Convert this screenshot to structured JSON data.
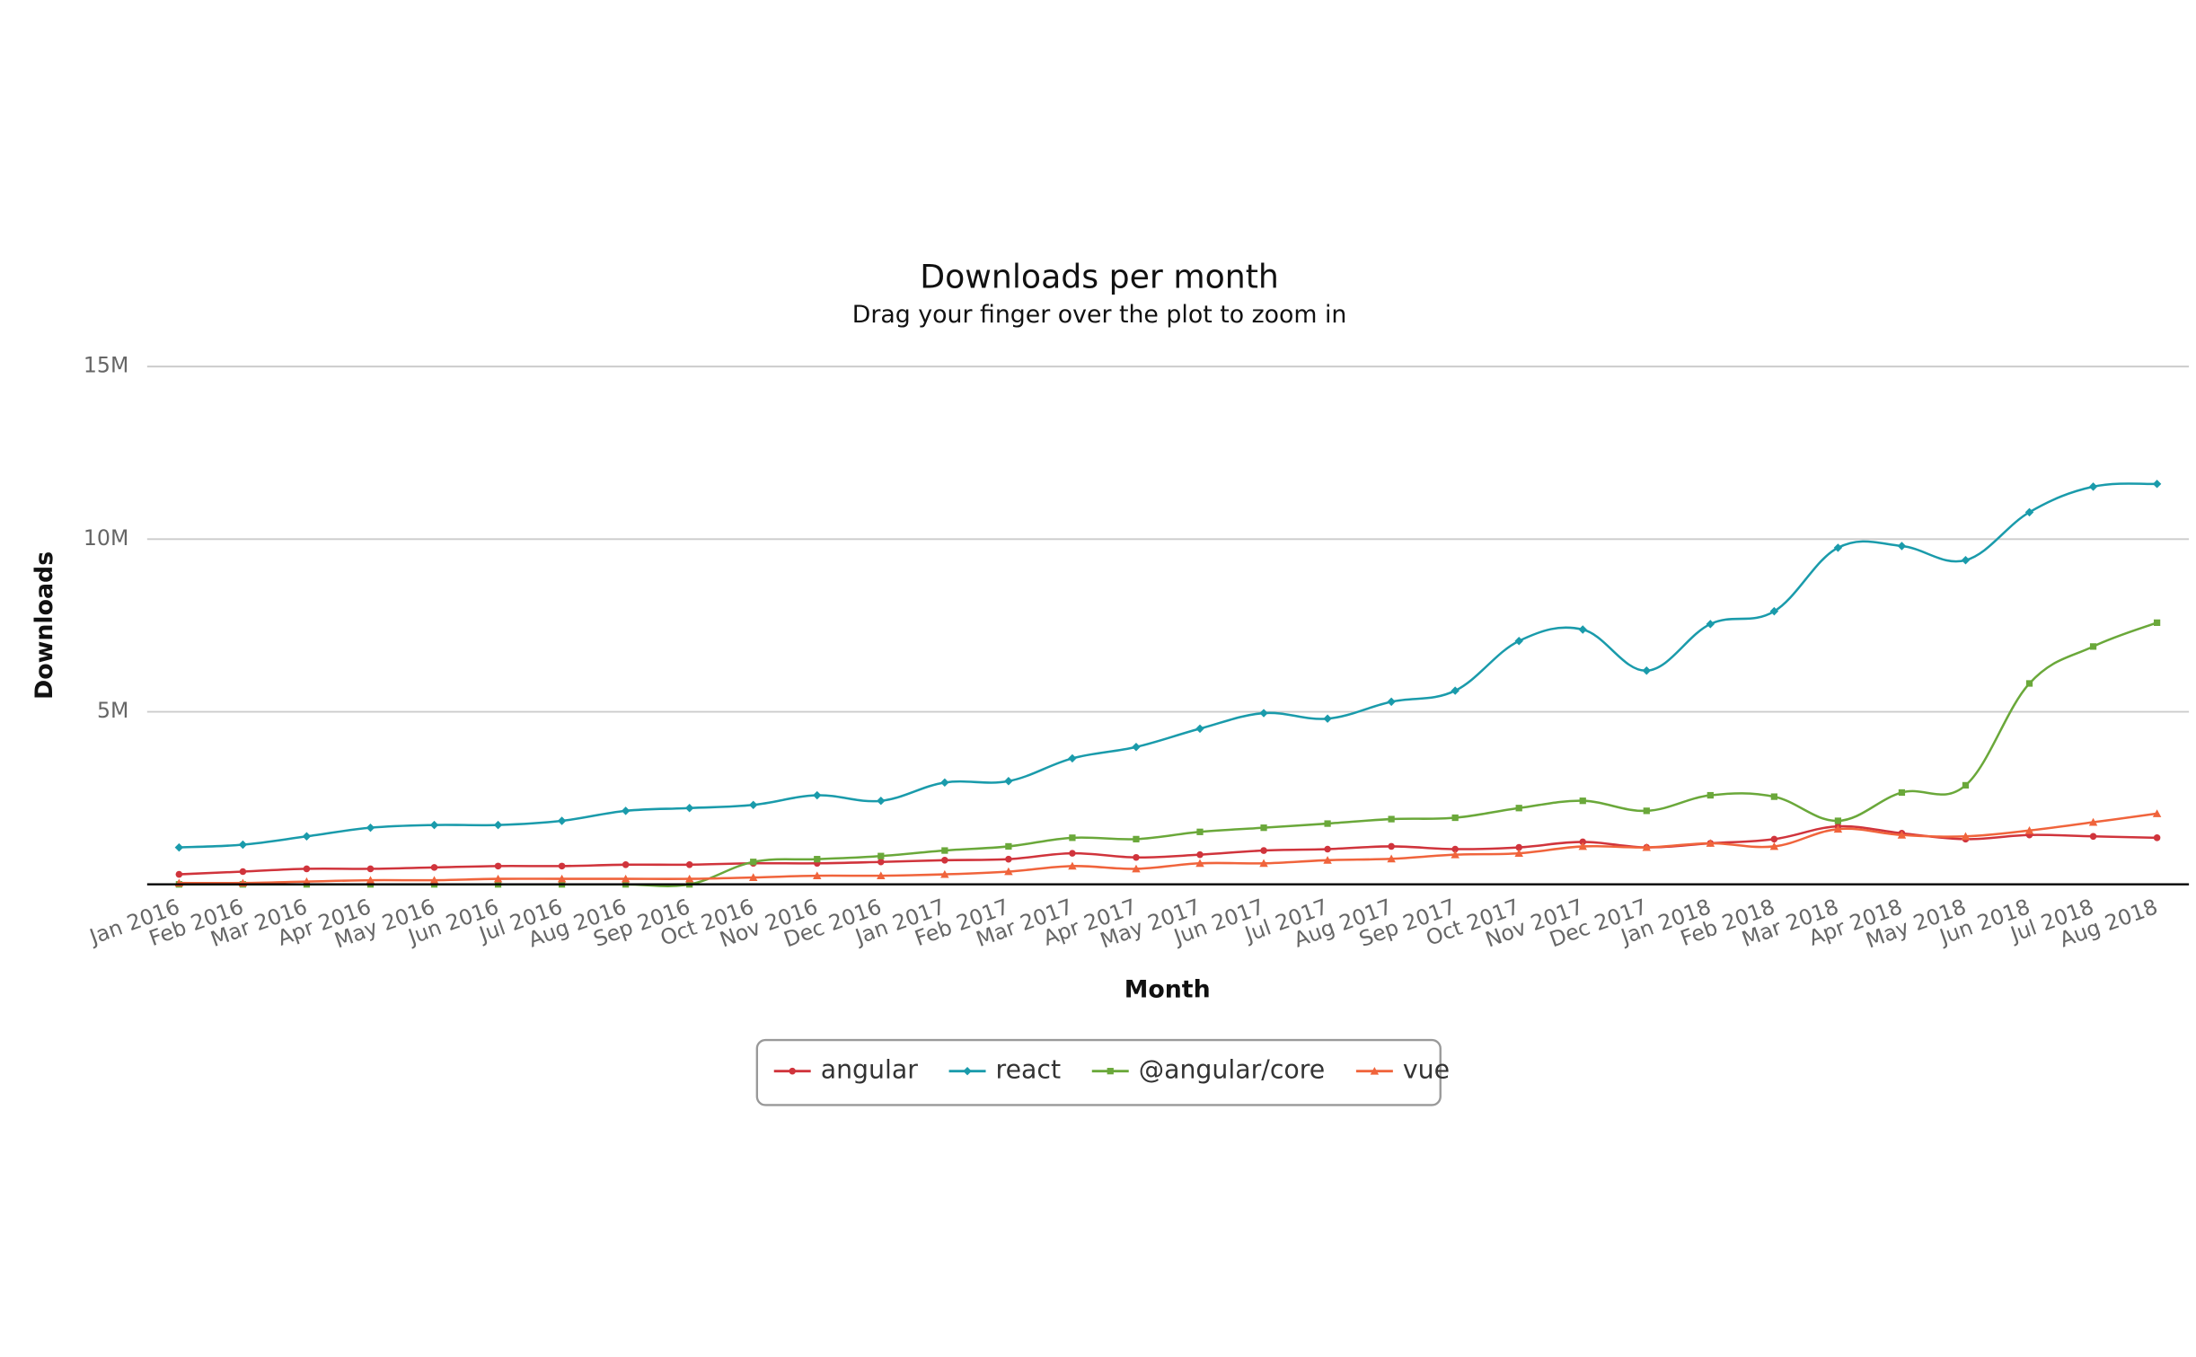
{
  "chart_data": {
    "type": "line",
    "title": "Downloads per month",
    "subtitle": "Drag your finger over the plot to zoom in",
    "x_label": "Month",
    "y_label": "Downloads",
    "categories": [
      "Jan 2016",
      "Feb 2016",
      "Mar 2016",
      "Apr 2016",
      "May 2016",
      "Jun 2016",
      "Jul 2016",
      "Aug 2016",
      "Sep 2016",
      "Oct 2016",
      "Nov 2016",
      "Dec 2016",
      "Jan 2017",
      "Feb 2017",
      "Mar 2017",
      "Apr 2017",
      "May 2017",
      "Jun 2017",
      "Jul 2017",
      "Aug 2017",
      "Sep 2017",
      "Oct 2017",
      "Nov 2017",
      "Dec 2017",
      "Jan 2018",
      "Feb 2018",
      "Mar 2018",
      "Apr 2018",
      "May 2018",
      "Jun 2018",
      "Jul 2018",
      "Aug 2018"
    ],
    "series": [
      {
        "name": "angular",
        "color": "#d0343c",
        "marker": "circle",
        "values": [
          290000,
          370000,
          450000,
          450000,
          490000,
          530000,
          530000,
          570000,
          570000,
          610000,
          610000,
          650000,
          700000,
          730000,
          900000,
          780000,
          860000,
          980000,
          1020000,
          1100000,
          1020000,
          1070000,
          1230000,
          1070000,
          1190000,
          1310000,
          1680000,
          1480000,
          1310000,
          1430000,
          1390000,
          1350000
        ]
      },
      {
        "name": "react",
        "color": "#1a9bab",
        "marker": "diamond",
        "values": [
          1070000,
          1150000,
          1390000,
          1640000,
          1720000,
          1720000,
          1840000,
          2130000,
          2210000,
          2300000,
          2580000,
          2420000,
          2950000,
          2990000,
          3650000,
          3980000,
          4510000,
          4960000,
          4800000,
          5290000,
          5610000,
          7050000,
          7380000,
          6190000,
          7540000,
          7910000,
          9750000,
          9800000,
          9390000,
          10780000,
          11520000,
          11600000
        ]
      },
      {
        "name": "@angular/core",
        "color": "#6aa83a",
        "marker": "square",
        "values": [
          0,
          0,
          0,
          0,
          0,
          0,
          0,
          0,
          0,
          650000,
          730000,
          820000,
          980000,
          1100000,
          1350000,
          1310000,
          1520000,
          1640000,
          1760000,
          1890000,
          1930000,
          2210000,
          2420000,
          2130000,
          2580000,
          2540000,
          1840000,
          2660000,
          2870000,
          5820000,
          6890000,
          7580000
        ]
      },
      {
        "name": "vue",
        "color": "#f0643c",
        "marker": "triangle",
        "values": [
          40000,
          40000,
          80000,
          120000,
          120000,
          160000,
          160000,
          160000,
          160000,
          200000,
          250000,
          250000,
          290000,
          370000,
          530000,
          450000,
          610000,
          610000,
          700000,
          740000,
          860000,
          900000,
          1100000,
          1070000,
          1190000,
          1100000,
          1600000,
          1430000,
          1390000,
          1560000,
          1800000,
          2050000
        ]
      }
    ],
    "ylim": [
      0,
      15000000
    ],
    "yticks": [
      {
        "value": 5000000,
        "label": "5M"
      },
      {
        "value": 10000000,
        "label": "10M"
      },
      {
        "value": 15000000,
        "label": "15M"
      }
    ],
    "grid": true,
    "legend": "bottom"
  }
}
